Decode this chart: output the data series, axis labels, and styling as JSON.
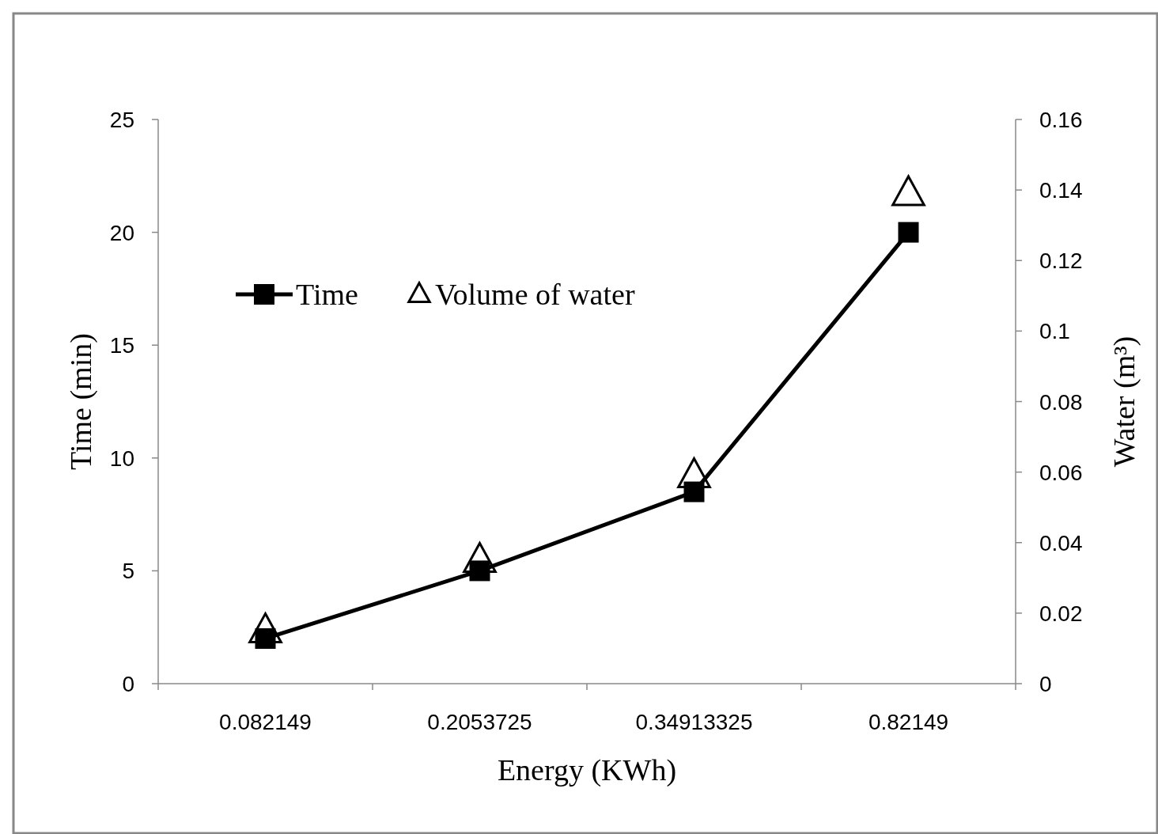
{
  "chart_data": {
    "type": "line",
    "xlabel": "Energy (KWh)",
    "ylabel": "Time (min)",
    "y2label": "Water (m³)",
    "categories": [
      "0.082149",
      "0.2053725",
      "0.34913325",
      "0.82149"
    ],
    "series": [
      {
        "name": "Time",
        "color": "#000000",
        "marker": "square",
        "values": [
          2,
          5,
          8.5,
          20
        ]
      },
      {
        "name": "Volume of water",
        "type": "scatter",
        "axis": "y2",
        "color": "#000000",
        "marker": "triangle",
        "values": [
          0.015,
          0.035,
          0.059,
          0.139
        ]
      }
    ],
    "ylim": [
      0,
      25
    ],
    "yticks": [
      0,
      5,
      10,
      15,
      20,
      25
    ],
    "y2lim": [
      0,
      0.16
    ],
    "y2ticks": [
      0,
      0.02,
      0.04,
      0.06,
      0.08,
      0.1,
      0.12,
      0.14,
      0.16
    ],
    "grid": false,
    "legend": "top left",
    "line_style": "solid"
  }
}
